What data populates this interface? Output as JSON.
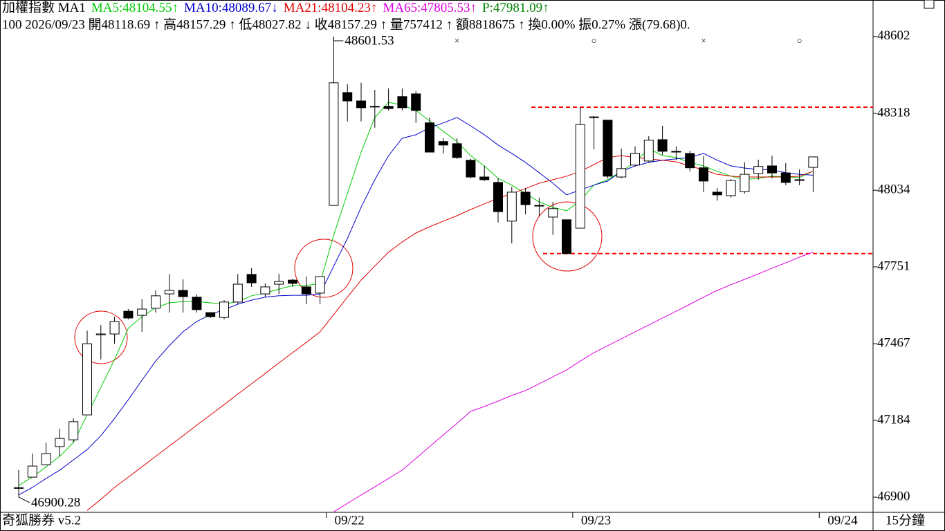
{
  "chart_data": {
    "type": "candlestick",
    "title": "加權指數 MA1",
    "info_line": "100 2026/09/23 開48118.69 ↑ 高48157.29 ↑ 低48027.82 ↓ 收48157.29 ↑ 量757412 ↑ 額8818675 ↑ 換0.00% 振0.27% 漲(79.68)0.",
    "price_label": {
      "text": "P:47981.09",
      "arrow": "↑",
      "color": "#008000"
    },
    "footer": "奇狐勝券 v5.2",
    "timeframe": "15分鐘",
    "categories": [
      null,
      null,
      null,
      null,
      null,
      null,
      null,
      null,
      null,
      null,
      null,
      null,
      null,
      null,
      null,
      null,
      null,
      null,
      null,
      null,
      null,
      null,
      null,
      "09/22",
      null,
      null,
      null,
      null,
      null,
      null,
      null,
      null,
      null,
      null,
      null,
      null,
      null,
      null,
      null,
      null,
      null,
      "09/23",
      null,
      null,
      null,
      null,
      null,
      null,
      null,
      null,
      null,
      null,
      null,
      null,
      null,
      null,
      null,
      null,
      null,
      "09/24"
    ],
    "open": [
      46933,
      46974,
      47020,
      47087,
      47112,
      47204,
      47500,
      47503,
      47587,
      47572,
      47598,
      47651,
      47664,
      47639,
      47582,
      47564,
      47621,
      47723,
      47651,
      47687,
      47702,
      47677,
      47654,
      47978,
      48395,
      48364,
      48344,
      48344,
      48380,
      48390,
      48283,
      48214,
      48206,
      48145,
      48083,
      48063,
      47920,
      48027,
      47976,
      47935,
      47925,
      47894,
      48305,
      48293,
      48083,
      48127,
      48142,
      48221,
      48178,
      48170,
      48117,
      48027,
      48014,
      48029,
      48096,
      48124,
      48098,
      48070,
      48118.69,
      null
    ],
    "high": [
      47000,
      47061,
      47102,
      47153,
      47191,
      47516,
      47536,
      47567,
      47595,
      47631,
      47664,
      47724,
      47705,
      47649,
      47582,
      47628,
      47725,
      47746,
      47690,
      47725,
      47707,
      47715,
      47715,
      48601.53,
      48426,
      48431,
      48405,
      48410,
      48410,
      48400,
      48303,
      48226,
      48226,
      48150,
      48124,
      48078,
      48047,
      48042,
      48007,
      47991,
      47925,
      48341,
      48308,
      48293,
      48188,
      48196,
      48234,
      48272,
      48196,
      48180,
      48160,
      48042,
      48075,
      48137,
      48147,
      48162,
      48134,
      48111,
      48157.29,
      null
    ],
    "low": [
      46900.28,
      46974,
      47020,
      47051,
      47102,
      47204,
      47409,
      47467,
      47557,
      47511,
      47582,
      47582,
      47582,
      47582,
      47562,
      47557,
      47613,
      47677,
      47639,
      47651,
      47677,
      47613,
      47613,
      47978,
      48288,
      48288,
      48265,
      48329,
      48329,
      48283,
      48175,
      48170,
      48150,
      48078,
      48068,
      47915,
      47838,
      47945,
      47940,
      47869,
      47800,
      47894,
      48185,
      48078,
      48078,
      48122,
      48137,
      48165,
      48145,
      48104,
      48027,
      47996,
      48007,
      48022,
      48073,
      48078,
      48053,
      48053,
      48027.82,
      null
    ],
    "close": [
      46935,
      47015,
      47061,
      47117,
      47179,
      47467,
      47503,
      47549,
      47562,
      47595,
      47644,
      47664,
      47641,
      47593,
      47567,
      47621,
      47687,
      47692,
      47677,
      47697,
      47690,
      47651,
      47715,
      48431,
      48364,
      48339,
      48342,
      48336,
      48339,
      48329,
      48175,
      48201,
      48155,
      48083,
      48073,
      47955,
      48027,
      47981,
      47978,
      47966,
      47800,
      48277,
      48303,
      48086,
      48114,
      48170,
      48219,
      48178,
      48175,
      48117,
      48068,
      48017,
      48070,
      48093,
      48122,
      48098,
      48063,
      48073,
      48157.29,
      null
    ],
    "series": [
      {
        "name": "MA5:48104.55",
        "arrow": "↑",
        "color": "#00cc00",
        "values": [
          46943,
          46974,
          47012,
          47051,
          47102,
          47204,
          47306,
          47409,
          47524,
          47567,
          47600,
          47618,
          47623,
          47623,
          47618,
          47613,
          47623,
          47644,
          47654,
          47669,
          47682,
          47682,
          47690,
          47869,
          48022,
          48175,
          48303,
          48359,
          48349,
          48329,
          48290,
          48252,
          48214,
          48162,
          48124,
          48078,
          48053,
          48022,
          47991,
          47971,
          47958,
          47996,
          48053,
          48073,
          48104,
          48137,
          48188,
          48162,
          48155,
          48137,
          48124,
          48104,
          48086,
          48073,
          48078,
          48086,
          48083,
          48081,
          48104.55,
          null
        ]
      },
      {
        "name": "MA10:48089.67",
        "arrow": "↓",
        "color": "#0000cc",
        "values": [
          46908,
          46936,
          46969,
          47000,
          47038,
          47076,
          47127,
          47191,
          47260,
          47332,
          47403,
          47460,
          47511,
          47549,
          47575,
          47593,
          47613,
          47628,
          47639,
          47644,
          47646,
          47646,
          47651,
          47754,
          47856,
          47971,
          48073,
          48162,
          48226,
          48239,
          48265,
          48283,
          48303,
          48272,
          48239,
          48201,
          48170,
          48137,
          48099,
          48060,
          48017,
          48035,
          48053,
          48068,
          48104,
          48124,
          48137,
          48145,
          48150,
          48155,
          48170,
          48145,
          48124,
          48116,
          48111,
          48109,
          48099,
          48093,
          48089.67,
          null
        ]
      },
      {
        "name": "MA21:48104.23",
        "arrow": "↑",
        "color": "#e00000",
        "values": [
          null,
          null,
          null,
          null,
          null,
          46851,
          46892,
          46936,
          46974,
          47012,
          47051,
          47089,
          47127,
          47166,
          47204,
          47242,
          47281,
          47319,
          47357,
          47396,
          47434,
          47472,
          47511,
          47575,
          47639,
          47702,
          47754,
          47805,
          47843,
          47876,
          47899,
          47920,
          47940,
          47963,
          47984,
          48004,
          48022,
          48040,
          48060,
          48073,
          48086,
          48104,
          48129,
          48155,
          48162,
          48155,
          48150,
          48145,
          48139,
          48124,
          48109,
          48093,
          48086,
          48083,
          48083,
          48083,
          48083,
          48086,
          48104.23,
          null
        ]
      },
      {
        "name": "MA65:47805.53",
        "arrow": "↑",
        "color": "#e000e0",
        "values": [
          null,
          null,
          null,
          null,
          null,
          null,
          null,
          null,
          null,
          null,
          null,
          null,
          null,
          null,
          null,
          null,
          null,
          null,
          null,
          null,
          null,
          null,
          null,
          46846,
          46877,
          46908,
          46938,
          46969,
          47000,
          47043,
          47087,
          47130,
          47173,
          47217,
          47235,
          47255,
          47276,
          47294,
          47319,
          47345,
          47370,
          47403,
          47434,
          47460,
          47485,
          47511,
          47536,
          47562,
          47587,
          47613,
          47639,
          47664,
          47685,
          47705,
          47725,
          47746,
          47766,
          47787,
          47805.53,
          null
        ]
      }
    ],
    "hlines": [
      {
        "value": 48341,
        "color": "#ff0000"
      },
      {
        "value": 47800,
        "color": "#ff0000"
      }
    ],
    "signals": [
      {
        "index": 32,
        "symbol": "×"
      },
      {
        "index": 42,
        "symbol": "○"
      },
      {
        "index": 50,
        "symbol": "×"
      },
      {
        "index": 57,
        "symbol": "○"
      }
    ],
    "signal_color": "#ff0000",
    "up_color": "#ffffff",
    "down_color": "#000000",
    "ylim": [
      46844,
      48737
    ],
    "yticks": [
      46900,
      47184,
      47467,
      47751,
      48034,
      48318,
      48602
    ]
  }
}
